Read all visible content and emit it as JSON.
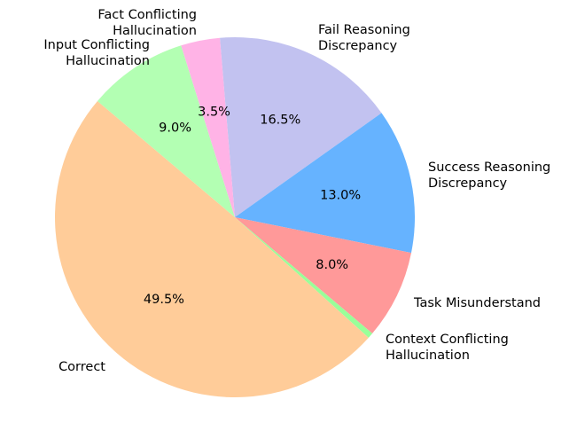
{
  "chart_data": {
    "type": "pie",
    "title": "",
    "start_angle_deg": 94.8,
    "direction": "clockwise",
    "center": [
      265,
      245
    ],
    "radius": 203,
    "slices": [
      {
        "label": "Fail Reasoning\nDiscrepancy",
        "value": 16.5,
        "pct": "16.5%",
        "color": "#c2c2f0"
      },
      {
        "label": "Success Reasoning\nDiscrepancy",
        "value": 13.0,
        "pct": "13.0%",
        "color": "#66b3ff"
      },
      {
        "label": "Task Misunderstand",
        "value": 8.0,
        "pct": "8.0%",
        "color": "#ff9999"
      },
      {
        "label": "Context Conflicting\nHallucination",
        "value": 0.5,
        "pct": "",
        "color": "#99ff99"
      },
      {
        "label": "Correct",
        "value": 49.5,
        "pct": "49.5%",
        "color": "#ffcc99"
      },
      {
        "label": "Input Conflicting\nHallucination",
        "value": 9.0,
        "pct": "9.0%",
        "color": "#b3ffb3"
      },
      {
        "label": "Fact Conflicting\nHallucination",
        "value": 3.5,
        "pct": "3.5%",
        "color": "#ffb3e6"
      }
    ]
  }
}
